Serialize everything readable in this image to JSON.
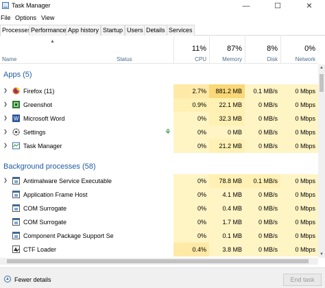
{
  "window": {
    "title": "Task Manager",
    "minimize": "—",
    "maximize": "☐",
    "close": "✕"
  },
  "menu": [
    "File",
    "Options",
    "View"
  ],
  "tabs": [
    "Processes",
    "Performance",
    "App history",
    "Startup",
    "Users",
    "Details",
    "Services"
  ],
  "columns": {
    "name": "Name",
    "status": "Status",
    "cpu": {
      "pct": "11%",
      "label": "CPU"
    },
    "memory": {
      "pct": "87%",
      "label": "Memory"
    },
    "disk": {
      "pct": "8%",
      "label": "Disk"
    },
    "network": {
      "pct": "0%",
      "label": "Network"
    }
  },
  "groups": {
    "apps": "Apps (5)",
    "background": "Background processes (58)"
  },
  "apps": [
    {
      "name": "Firefox (11)",
      "icon": "firefox-icon",
      "cpu": "2.7%",
      "memory": "881.2 MB",
      "disk": "0.1 MB/s",
      "network": "0 Mbps"
    },
    {
      "name": "Greenshot",
      "icon": "greenshot-icon",
      "cpu": "0.9%",
      "memory": "22.1 MB",
      "disk": "0 MB/s",
      "network": "0 Mbps"
    },
    {
      "name": "Microsoft Word",
      "icon": "word-icon",
      "cpu": "0%",
      "memory": "32.3 MB",
      "disk": "0 MB/s",
      "network": "0 Mbps"
    },
    {
      "name": "Settings",
      "icon": "settings-icon",
      "cpu": "0%",
      "memory": "0 MB",
      "disk": "0 MB/s",
      "network": "0 Mbps",
      "status": "leaf"
    },
    {
      "name": "Task Manager",
      "icon": "task-manager-icon",
      "cpu": "0%",
      "memory": "21.2 MB",
      "disk": "0 MB/s",
      "network": "0 Mbps"
    }
  ],
  "background": [
    {
      "name": "Antimalware Service Executable",
      "cpu": "0%",
      "memory": "78.8 MB",
      "disk": "0.1 MB/s",
      "network": "0 Mbps",
      "expandable": true
    },
    {
      "name": "Application Frame Host",
      "cpu": "0%",
      "memory": "4.1 MB",
      "disk": "0 MB/s",
      "network": "0 Mbps"
    },
    {
      "name": "COM Surrogate",
      "cpu": "0%",
      "memory": "0.4 MB",
      "disk": "0 MB/s",
      "network": "0 Mbps"
    },
    {
      "name": "COM Surrogate",
      "cpu": "0%",
      "memory": "1.7 MB",
      "disk": "0 MB/s",
      "network": "0 Mbps"
    },
    {
      "name": "Component Package Support Se...",
      "cpu": "0%",
      "memory": "0.1 MB",
      "disk": "0 MB/s",
      "network": "0 Mbps"
    },
    {
      "name": "CTF Loader",
      "cpu": "0.4%",
      "memory": "3.8 MB",
      "disk": "0 MB/s",
      "network": "0 Mbps"
    }
  ],
  "footer": {
    "fewer_details": "Fewer details",
    "end_task": "End task"
  },
  "colors": {
    "cpu_shade": "#fff4c4",
    "cpu_shade_strong": "#ffe9a6",
    "mem_shade": "#fff0b3",
    "mem_shade_strong": "#fad877",
    "disk_shade": "#fff4c4",
    "net_shade": "#fff4c4",
    "group_title": "#1f5aa6"
  }
}
